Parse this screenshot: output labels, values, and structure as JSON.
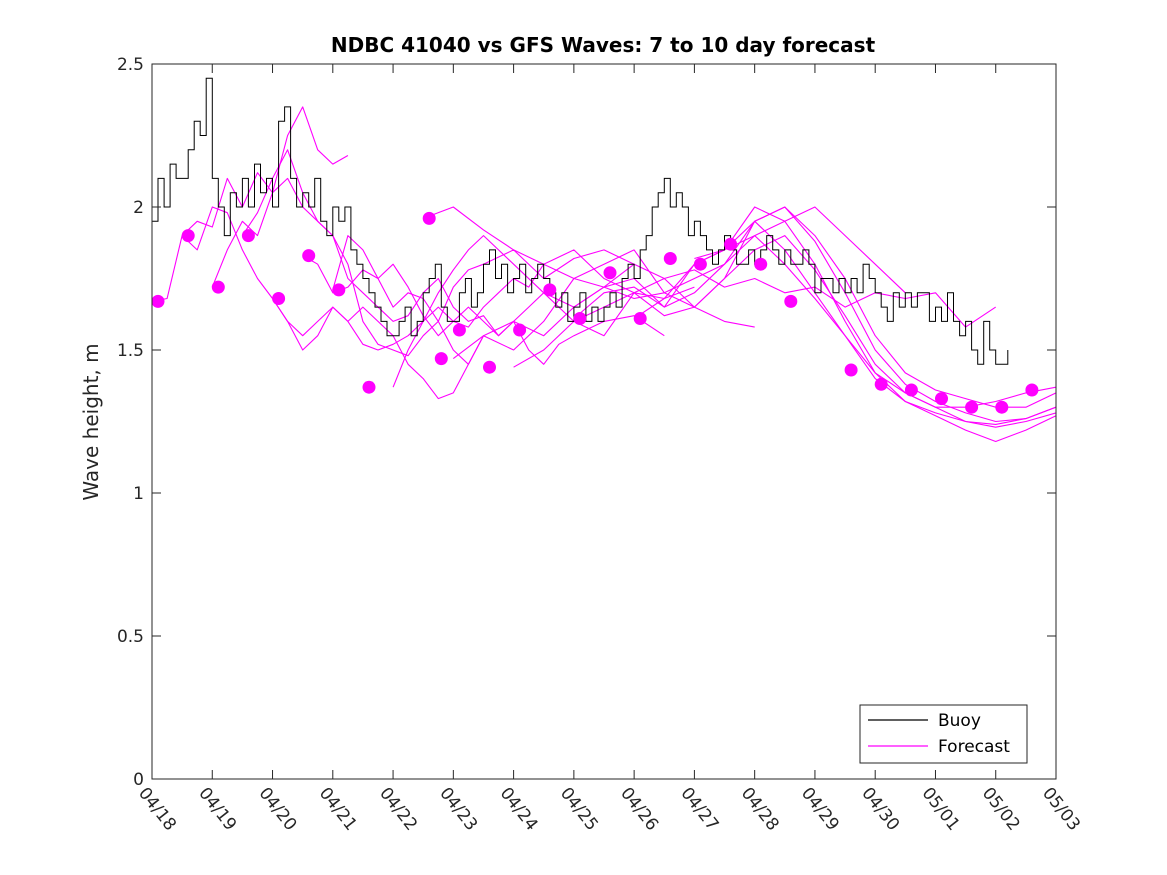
{
  "chart_data": {
    "type": "line",
    "title": "NDBC 41040 vs GFS Waves: 7 to 10 day forecast",
    "xlabel": "",
    "ylabel": "Wave height, m",
    "xlim": [
      0,
      15
    ],
    "ylim": [
      0,
      2.5
    ],
    "x_tick_labels": [
      "04/18",
      "04/19",
      "04/20",
      "04/21",
      "04/22",
      "04/23",
      "04/24",
      "04/25",
      "04/26",
      "04/27",
      "04/28",
      "04/29",
      "04/30",
      "05/01",
      "05/02",
      "05/03"
    ],
    "y_tick_labels": [
      "0",
      "0.5",
      "1",
      "1.5",
      "2",
      "2.5"
    ],
    "x_units": "days since 04/18",
    "grid": false,
    "legend_position": "bottom-right",
    "colors": {
      "buoy": "#000000",
      "forecast": "#ff00ff"
    },
    "series": [
      {
        "name": "Buoy",
        "style": "step-line",
        "x": [
          0.0,
          0.1,
          0.2,
          0.3,
          0.4,
          0.5,
          0.6,
          0.7,
          0.8,
          0.9,
          1.0,
          1.1,
          1.2,
          1.3,
          1.4,
          1.5,
          1.6,
          1.7,
          1.8,
          1.9,
          2.0,
          2.1,
          2.2,
          2.3,
          2.4,
          2.5,
          2.6,
          2.7,
          2.8,
          2.9,
          3.0,
          3.1,
          3.2,
          3.3,
          3.4,
          3.5,
          3.6,
          3.7,
          3.8,
          3.9,
          4.0,
          4.1,
          4.2,
          4.3,
          4.4,
          4.5,
          4.6,
          4.7,
          4.8,
          4.9,
          5.0,
          5.1,
          5.2,
          5.3,
          5.4,
          5.5,
          5.6,
          5.7,
          5.8,
          5.9,
          6.0,
          6.1,
          6.2,
          6.3,
          6.4,
          6.5,
          6.6,
          6.7,
          6.8,
          6.9,
          7.0,
          7.1,
          7.2,
          7.3,
          7.4,
          7.5,
          7.6,
          7.7,
          7.8,
          7.9,
          8.0,
          8.1,
          8.2,
          8.3,
          8.4,
          8.5,
          8.6,
          8.7,
          8.8,
          8.9,
          9.0,
          9.1,
          9.2,
          9.3,
          9.4,
          9.5,
          9.6,
          9.7,
          9.8,
          9.9,
          10.0,
          10.1,
          10.2,
          10.3,
          10.4,
          10.5,
          10.6,
          10.7,
          10.8,
          10.9,
          11.0,
          11.1,
          11.2,
          11.3,
          11.4,
          11.5,
          11.6,
          11.7,
          11.8,
          11.9,
          12.0,
          12.1,
          12.2,
          12.3,
          12.4,
          12.5,
          12.6,
          12.7,
          12.8,
          12.9,
          13.0,
          13.1,
          13.2,
          13.3,
          13.4,
          13.5,
          13.6,
          13.7,
          13.8,
          13.9,
          14.0,
          14.1,
          14.2
        ],
        "values": [
          1.95,
          2.1,
          2.0,
          2.15,
          2.1,
          2.1,
          2.2,
          2.3,
          2.25,
          2.45,
          2.1,
          2.0,
          1.9,
          2.05,
          2.0,
          2.1,
          2.0,
          2.15,
          2.05,
          2.1,
          2.0,
          2.3,
          2.35,
          2.1,
          2.0,
          2.05,
          2.0,
          2.1,
          1.95,
          1.9,
          2.0,
          1.95,
          2.0,
          1.85,
          1.8,
          1.75,
          1.7,
          1.65,
          1.6,
          1.55,
          1.55,
          1.6,
          1.65,
          1.55,
          1.6,
          1.7,
          1.75,
          1.8,
          1.65,
          1.6,
          1.6,
          1.7,
          1.75,
          1.65,
          1.7,
          1.8,
          1.85,
          1.75,
          1.8,
          1.7,
          1.75,
          1.8,
          1.7,
          1.75,
          1.8,
          1.75,
          1.7,
          1.65,
          1.7,
          1.6,
          1.65,
          1.7,
          1.6,
          1.65,
          1.6,
          1.65,
          1.7,
          1.65,
          1.75,
          1.8,
          1.75,
          1.85,
          1.9,
          2.0,
          2.05,
          2.1,
          2.0,
          2.05,
          2.0,
          1.9,
          1.95,
          1.9,
          1.85,
          1.8,
          1.85,
          1.9,
          1.85,
          1.8,
          1.8,
          1.85,
          1.8,
          1.85,
          1.9,
          1.85,
          1.8,
          1.85,
          1.8,
          1.8,
          1.85,
          1.8,
          1.7,
          1.75,
          1.75,
          1.7,
          1.75,
          1.7,
          1.75,
          1.7,
          1.8,
          1.75,
          1.7,
          1.65,
          1.6,
          1.7,
          1.65,
          1.7,
          1.65,
          1.7,
          1.7,
          1.6,
          1.65,
          1.6,
          1.7,
          1.6,
          1.55,
          1.6,
          1.5,
          1.45,
          1.6,
          1.5,
          1.45,
          1.45,
          1.5
        ]
      },
      {
        "name": "Forecast",
        "style": "line",
        "runs": [
          {
            "x": [
              0.0,
              0.25,
              0.5,
              0.75,
              1.0,
              1.25,
              1.5,
              1.75,
              2.0,
              2.25,
              2.5,
              2.75,
              3.0,
              3.25
            ],
            "values": [
              1.67,
              1.68,
              1.9,
              1.95,
              1.93,
              2.1,
              2.0,
              2.12,
              2.05,
              2.25,
              2.35,
              2.2,
              2.15,
              2.18
            ]
          },
          {
            "x": [
              0.5,
              0.75,
              1.0,
              1.25,
              1.5,
              1.75,
              2.0,
              2.25,
              2.5,
              2.75,
              3.0,
              3.25,
              3.5,
              3.75,
              4.0,
              4.25,
              4.5,
              4.75,
              5.0,
              5.25,
              5.5
            ],
            "values": [
              1.9,
              1.85,
              2.0,
              1.98,
              1.85,
              1.75,
              1.68,
              1.6,
              1.55,
              1.6,
              1.65,
              1.6,
              1.65,
              1.6,
              1.55,
              1.45,
              1.4,
              1.33,
              1.35,
              1.45,
              1.55
            ]
          },
          {
            "x": [
              1.0,
              1.25,
              1.5,
              1.75,
              2.0,
              2.25,
              2.5,
              2.75,
              3.0,
              3.25,
              3.5,
              3.75,
              4.0,
              4.25,
              4.5,
              4.75,
              5.0,
              5.25,
              5.5,
              6.0,
              6.5,
              7.0,
              7.5,
              8.0
            ],
            "values": [
              1.72,
              1.85,
              1.95,
              1.9,
              2.05,
              2.1,
              2.0,
              1.95,
              1.9,
              1.8,
              1.6,
              1.52,
              1.5,
              1.48,
              1.55,
              1.6,
              1.5,
              1.45,
              1.55,
              1.6,
              1.55,
              1.65,
              1.72,
              1.8
            ]
          },
          {
            "x": [
              1.5,
              1.75,
              2.0,
              2.25,
              2.5,
              2.75,
              3.0,
              3.25,
              3.5,
              3.75,
              4.0,
              4.25,
              4.5,
              4.75,
              5.0,
              5.25,
              5.5,
              5.75,
              6.0,
              6.25,
              6.5,
              6.75,
              7.0,
              7.5,
              8.0,
              8.5
            ],
            "values": [
              1.9,
              1.98,
              2.1,
              2.2,
              2.05,
              1.95,
              1.9,
              1.75,
              1.7,
              1.65,
              1.6,
              1.62,
              1.7,
              1.75,
              1.65,
              1.6,
              1.62,
              1.55,
              1.6,
              1.5,
              1.45,
              1.52,
              1.55,
              1.6,
              1.62,
              1.55
            ]
          },
          {
            "x": [
              2.0,
              2.25,
              2.5,
              2.75,
              3.0,
              3.25,
              3.5,
              3.75,
              4.0,
              4.25,
              4.5,
              4.75,
              5.0,
              5.25,
              5.5,
              5.75,
              6.0,
              6.25,
              6.5,
              7.0,
              7.5,
              8.0,
              8.5,
              9.0
            ],
            "values": [
              1.68,
              1.6,
              1.5,
              1.55,
              1.65,
              1.6,
              1.52,
              1.5,
              1.52,
              1.55,
              1.6,
              1.65,
              1.6,
              1.58,
              1.65,
              1.7,
              1.75,
              1.72,
              1.8,
              1.85,
              1.75,
              1.7,
              1.68,
              1.72
            ]
          },
          {
            "x": [
              2.5,
              2.75,
              3.0,
              3.25,
              3.5,
              3.75,
              4.0,
              4.25,
              4.5,
              4.75,
              5.0,
              5.25,
              5.5,
              5.75,
              6.0,
              6.25,
              6.5,
              7.0,
              7.5,
              8.0,
              8.5,
              9.0,
              9.5,
              10.0
            ],
            "values": [
              1.83,
              1.8,
              1.7,
              1.72,
              1.78,
              1.75,
              1.8,
              1.72,
              1.62,
              1.55,
              1.6,
              1.65,
              1.6,
              1.55,
              1.6,
              1.65,
              1.7,
              1.6,
              1.65,
              1.7,
              1.62,
              1.65,
              1.6,
              1.58
            ]
          },
          {
            "x": [
              3.0,
              3.25,
              3.5,
              3.75,
              4.0,
              4.25,
              4.5,
              4.75,
              5.0,
              5.25,
              5.5,
              6.0,
              6.5,
              7.0,
              7.5,
              8.0,
              8.5,
              9.0,
              9.5,
              10.0,
              10.5,
              11.0,
              11.5,
              12.0,
              12.5,
              13.0,
              13.5,
              14.0
            ],
            "values": [
              1.71,
              1.9,
              1.85,
              1.75,
              1.65,
              1.7,
              1.68,
              1.6,
              1.72,
              1.78,
              1.8,
              1.85,
              1.75,
              1.82,
              1.85,
              1.8,
              1.75,
              1.78,
              1.72,
              1.75,
              1.7,
              1.72,
              1.65,
              1.7,
              1.68,
              1.7,
              1.58,
              1.65
            ]
          },
          {
            "x": [
              4.0,
              4.25,
              4.5,
              4.75,
              5.0,
              5.25,
              5.5,
              6.0,
              6.5,
              7.0,
              7.5,
              8.0,
              8.5,
              9.0,
              9.5,
              10.0,
              10.5,
              11.0,
              11.5,
              12.0,
              12.5
            ],
            "values": [
              1.37,
              1.5,
              1.6,
              1.7,
              1.78,
              1.85,
              1.9,
              1.8,
              1.7,
              1.65,
              1.72,
              1.75,
              1.65,
              1.7,
              1.8,
              1.9,
              1.95,
              2.0,
              1.9,
              1.8,
              1.7
            ]
          },
          {
            "x": [
              4.5,
              5.0,
              5.5,
              6.0,
              6.5,
              7.0,
              7.5,
              8.0,
              8.5,
              9.0,
              9.5,
              10.0,
              10.5,
              11.0,
              11.5,
              12.0,
              12.5,
              13.0,
              13.5,
              14.0,
              14.5,
              15.0
            ],
            "values": [
              1.96,
              2.0,
              1.92,
              1.85,
              1.8,
              1.75,
              1.72,
              1.68,
              1.7,
              1.75,
              1.8,
              1.95,
              2.0,
              1.9,
              1.75,
              1.55,
              1.42,
              1.36,
              1.33,
              1.3,
              1.3,
              1.35
            ]
          },
          {
            "x": [
              5.0,
              5.5,
              6.0,
              6.5,
              7.0,
              7.5,
              8.0,
              8.5,
              9.0,
              9.5,
              10.0,
              10.5,
              11.0,
              11.5,
              12.0,
              12.5,
              13.0,
              13.5,
              14.0,
              14.5,
              15.0
            ],
            "values": [
              1.47,
              1.55,
              1.5,
              1.6,
              1.75,
              1.8,
              1.85,
              1.7,
              1.65,
              1.75,
              1.95,
              2.0,
              1.88,
              1.7,
              1.5,
              1.38,
              1.32,
              1.28,
              1.25,
              1.26,
              1.3
            ]
          },
          {
            "x": [
              6.0,
              6.5,
              7.0,
              7.5,
              8.0,
              8.5,
              9.0,
              9.5,
              10.0,
              10.5,
              11.0,
              11.5,
              12.0,
              12.5,
              13.0,
              13.5,
              14.0,
              14.5,
              15.0
            ],
            "values": [
              1.44,
              1.5,
              1.6,
              1.55,
              1.7,
              1.75,
              1.65,
              1.75,
              1.85,
              1.9,
              1.78,
              1.62,
              1.45,
              1.35,
              1.3,
              1.25,
              1.23,
              1.25,
              1.28
            ]
          },
          {
            "x": [
              7.0,
              7.5,
              8.0,
              8.5,
              9.0,
              9.5,
              10.0,
              10.5,
              11.0,
              11.5,
              12.0,
              12.5,
              13.0,
              13.5,
              14.0,
              14.5,
              15.0
            ],
            "values": [
              1.61,
              1.7,
              1.72,
              1.65,
              1.8,
              1.85,
              2.0,
              1.95,
              1.8,
              1.6,
              1.42,
              1.32,
              1.27,
              1.22,
              1.18,
              1.22,
              1.27
            ]
          },
          {
            "x": [
              8.0,
              8.5,
              9.0,
              9.5,
              10.0,
              10.5,
              11.0,
              11.5,
              12.0,
              12.5,
              13.0,
              13.5,
              14.0,
              14.5,
              15.0
            ],
            "values": [
              1.61,
              1.68,
              1.8,
              1.85,
              1.9,
              1.8,
              1.68,
              1.55,
              1.4,
              1.32,
              1.28,
              1.25,
              1.24,
              1.26,
              1.3
            ]
          },
          {
            "x": [
              9.0,
              9.5,
              10.0,
              10.5,
              11.0,
              11.5,
              12.0,
              12.5,
              13.0,
              13.5,
              14.0,
              14.5,
              15.0
            ],
            "values": [
              1.82,
              1.85,
              1.95,
              1.85,
              1.7,
              1.55,
              1.42,
              1.35,
              1.3,
              1.3,
              1.32,
              1.35,
              1.37
            ]
          }
        ],
        "markers": {
          "x": [
            0.1,
            0.6,
            1.1,
            1.6,
            2.1,
            2.6,
            3.1,
            3.6,
            4.6,
            4.8,
            5.1,
            5.6,
            6.1,
            6.6,
            7.1,
            7.6,
            8.1,
            8.6,
            9.1,
            9.6,
            10.1,
            10.6,
            11.6,
            12.1,
            12.6,
            13.1,
            13.6,
            14.1,
            14.6
          ],
          "values": [
            1.67,
            1.9,
            1.72,
            1.9,
            1.68,
            1.83,
            1.71,
            1.37,
            1.96,
            1.47,
            1.57,
            1.44,
            1.57,
            1.71,
            1.61,
            1.77,
            1.61,
            1.82,
            1.8,
            1.87,
            1.8,
            1.67,
            1.43,
            1.38,
            1.36,
            1.33,
            1.3,
            1.3,
            1.36
          ]
        }
      }
    ]
  }
}
